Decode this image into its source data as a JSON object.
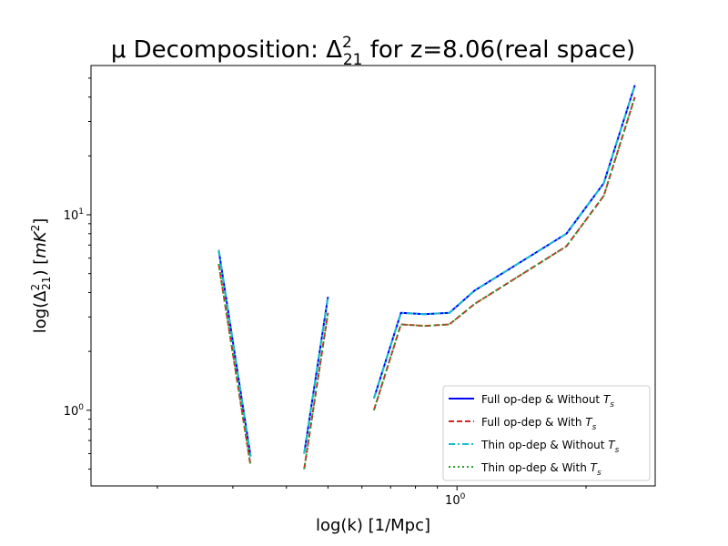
{
  "chart_data": {
    "type": "line",
    "title": "μ Decomposition: Δ²₂₁ for z=8.06(real space)",
    "title_parts": {
      "prefix": "μ Decomposition: Δ",
      "sup": "2",
      "sub": "21",
      "suffix": " for z=8.06(real space)"
    },
    "xlabel": "log(k) [1/Mpc]",
    "ylabel": "log(Δ²₂₁) [mK²]",
    "ylabel_parts": {
      "prefix": "log(Δ",
      "sup": "2",
      "sub": "21",
      "mid": ") [",
      "unit": "mK",
      "unit_sup": "2",
      "suffix": "]"
    },
    "x_scale": "log",
    "y_scale": "log",
    "xlim": [
      0.14,
      2.9
    ],
    "ylim": [
      0.41,
      58
    ],
    "x_ticks": [
      {
        "value": 1,
        "base": "10",
        "exp": "0"
      }
    ],
    "y_ticks": [
      {
        "value": 1,
        "base": "10",
        "exp": "0"
      },
      {
        "value": 10,
        "base": "10",
        "exp": "1"
      }
    ],
    "grid": false,
    "legend_position": "bottom-right",
    "series": [
      {
        "name": "Full op-dep & Without T_s",
        "label_main": "Full op-dep & Without ",
        "label_sym": "T",
        "label_sub": "s",
        "color": "#0000ff",
        "style": "solid",
        "segments": [
          [
            [
              0.278,
              6.6
            ],
            [
              0.33,
              0.58
            ]
          ],
          [
            [
              0.44,
              0.6
            ],
            [
              0.5,
              3.8
            ]
          ],
          [
            [
              0.64,
              1.15
            ],
            [
              0.74,
              3.15
            ],
            [
              0.84,
              3.1
            ],
            [
              0.96,
              3.15
            ],
            [
              1.1,
              4.1
            ],
            [
              1.8,
              8.0
            ],
            [
              2.2,
              14.5
            ],
            [
              2.6,
              46.0
            ]
          ]
        ]
      },
      {
        "name": "Full op-dep & With T_s",
        "label_main": "Full op-dep & With ",
        "label_sym": "T",
        "label_sub": "s",
        "color": "#d62728",
        "style": "dashed",
        "segments": [
          [
            [
              0.278,
              5.6
            ],
            [
              0.33,
              0.52
            ]
          ],
          [
            [
              0.44,
              0.5
            ],
            [
              0.5,
              3.15
            ]
          ],
          [
            [
              0.64,
              1.0
            ],
            [
              0.74,
              2.75
            ],
            [
              0.84,
              2.7
            ],
            [
              0.96,
              2.75
            ],
            [
              1.1,
              3.5
            ],
            [
              1.8,
              6.9
            ],
            [
              2.2,
              12.5
            ],
            [
              2.6,
              40.0
            ]
          ]
        ]
      },
      {
        "name": "Thin op-dep & Without T_s",
        "label_main": "Thin op-dep & Without ",
        "label_sym": "T",
        "label_sub": "s",
        "color": "#17becf",
        "style": "dashdot",
        "segments": [
          [
            [
              0.278,
              6.6
            ],
            [
              0.33,
              0.58
            ]
          ],
          [
            [
              0.44,
              0.6
            ],
            [
              0.5,
              3.8
            ]
          ],
          [
            [
              0.64,
              1.15
            ],
            [
              0.74,
              3.15
            ],
            [
              0.84,
              3.1
            ],
            [
              0.96,
              3.15
            ],
            [
              1.1,
              4.1
            ],
            [
              1.8,
              8.0
            ],
            [
              2.2,
              14.5
            ],
            [
              2.6,
              46.0
            ]
          ]
        ]
      },
      {
        "name": "Thin op-dep & With T_s",
        "label_main": "Thin op-dep & With ",
        "label_sym": "T",
        "label_sub": "s",
        "color": "#2ca02c",
        "style": "dotted",
        "segments": [
          [
            [
              0.278,
              5.6
            ],
            [
              0.33,
              0.52
            ]
          ],
          [
            [
              0.44,
              0.5
            ],
            [
              0.5,
              3.15
            ]
          ],
          [
            [
              0.64,
              1.0
            ],
            [
              0.74,
              2.75
            ],
            [
              0.84,
              2.7
            ],
            [
              0.96,
              2.75
            ],
            [
              1.1,
              3.5
            ],
            [
              1.8,
              6.9
            ],
            [
              2.2,
              12.5
            ],
            [
              2.6,
              40.0
            ]
          ]
        ]
      }
    ]
  }
}
